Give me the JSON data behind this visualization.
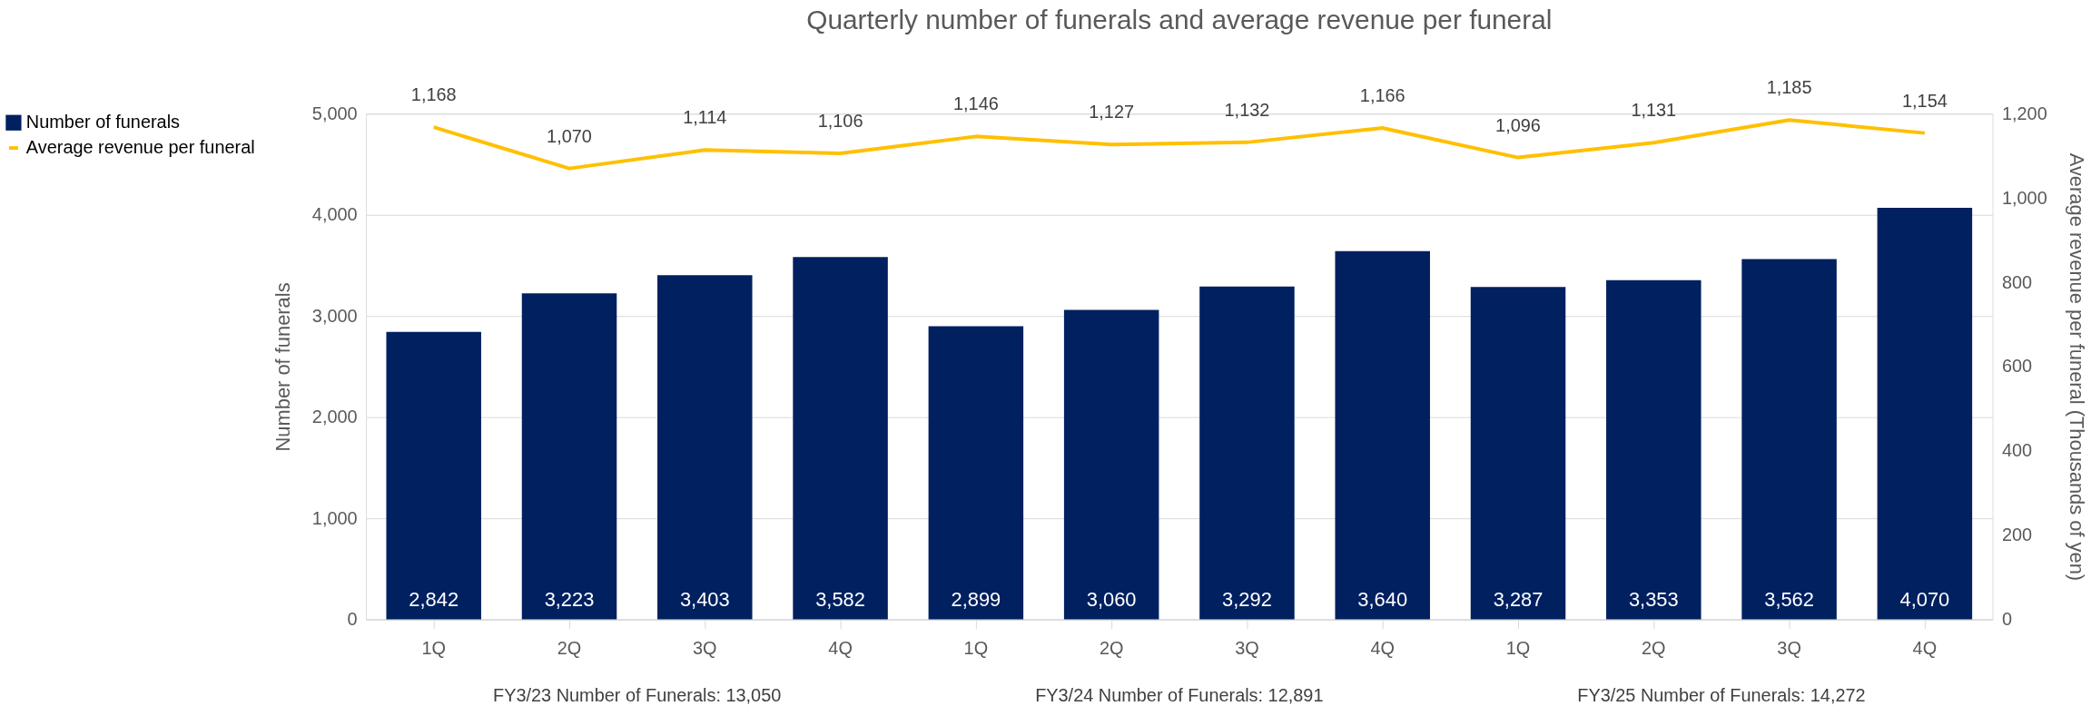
{
  "chart_data": {
    "type": "bar",
    "title": "Quarterly number of funerals and average revenue per funeral",
    "categories": [
      "1Q",
      "2Q",
      "3Q",
      "4Q",
      "1Q",
      "2Q",
      "3Q",
      "4Q",
      "1Q",
      "2Q",
      "3Q",
      "4Q"
    ],
    "series": [
      {
        "name": "Number of funerals",
        "color": "#002060",
        "values": [
          2842,
          3223,
          3403,
          3582,
          2899,
          3060,
          3292,
          3640,
          3287,
          3353,
          3562,
          4070
        ],
        "value_labels": [
          "2,842",
          "3,223",
          "3,403",
          "3,582",
          "2,899",
          "3,060",
          "3,292",
          "3,640",
          "3,287",
          "3,353",
          "3,562",
          "4,070"
        ]
      },
      {
        "name": "Average revenue per funeral",
        "type": "line",
        "axis": "y2",
        "color": "#ffc000",
        "values": [
          1168,
          1070,
          1114,
          1106,
          1146,
          1127,
          1132,
          1166,
          1096,
          1131,
          1185,
          1154
        ],
        "value_labels": [
          "1,168",
          "1,070",
          "1,114",
          "1,106",
          "1,146",
          "1,127",
          "1,132",
          "1,166",
          "1,096",
          "1,131",
          "1,185",
          "1,154"
        ]
      }
    ],
    "ylabel": "Number of funerals",
    "y2label": "Average revenue per funeral (Thousands of yen)",
    "ylim": [
      0,
      5000
    ],
    "yticks": [
      0,
      {
        "value": 1000,
        "label": "1,000"
      },
      {
        "value": 2000,
        "label": "2,000"
      },
      {
        "value": 3000,
        "label": "3,000"
      },
      {
        "value": 4000,
        "label": "4,000"
      },
      {
        "value": 5000,
        "label": "5,000"
      }
    ],
    "y2lim": [
      0,
      1200
    ],
    "y2ticks": [
      0,
      200,
      400,
      600,
      800,
      {
        "value": 1000,
        "label": "1,000"
      },
      {
        "value": 1200,
        "label": "1,200"
      }
    ],
    "annotations": [
      "FY3/23 Number of Funerals: 13,050",
      "FY3/24 Number of Funerals: 12,891",
      "FY3/25 Number of Funerals: 14,272"
    ],
    "grid": "y",
    "legend": "left",
    "marker": "none",
    "line_style": "solid"
  }
}
